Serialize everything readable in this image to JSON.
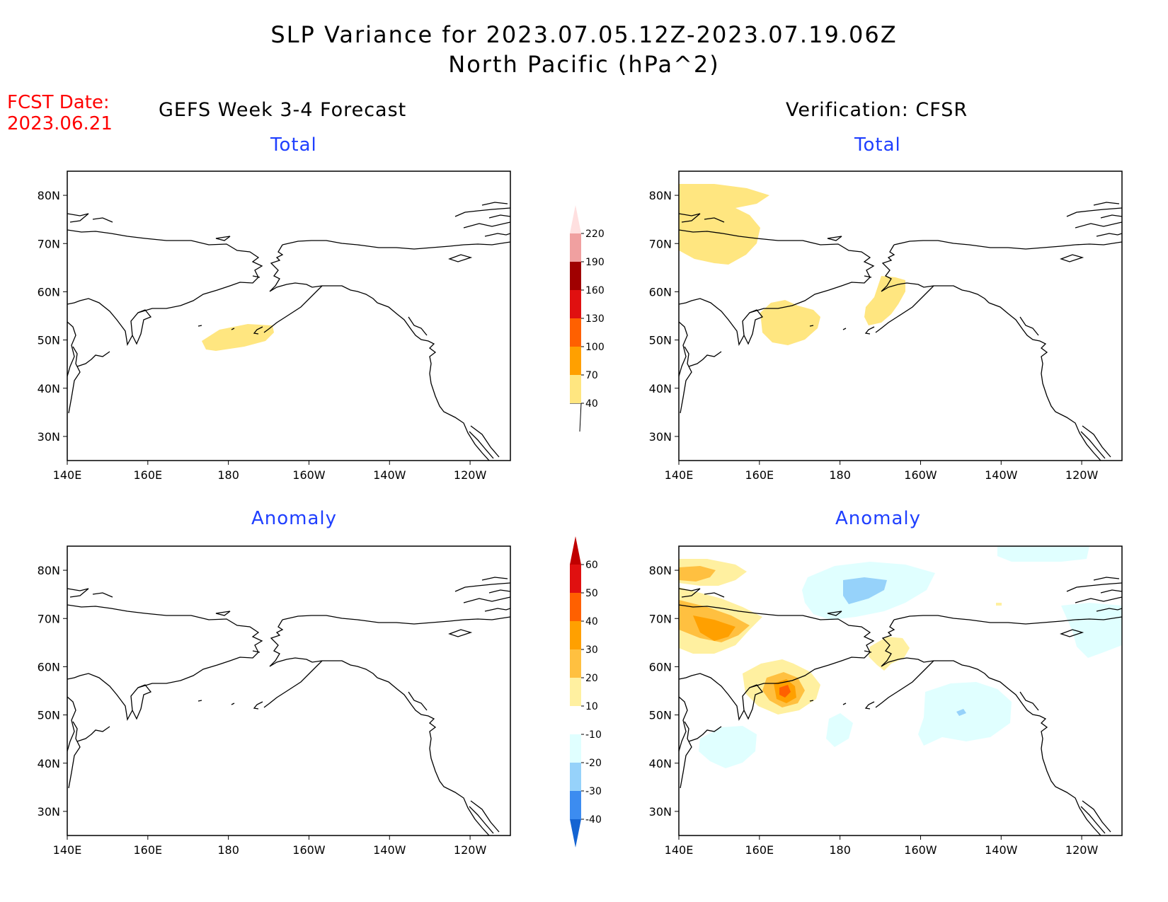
{
  "title": {
    "line1": "SLP Variance for 2023.07.05.12Z-2023.07.19.06Z",
    "line2": "North Pacific (hPa^2)"
  },
  "fcst": {
    "label": "FCST Date:",
    "date": "2023.06.21"
  },
  "columns": {
    "left": "GEFS Week 3-4 Forecast",
    "right": "Verification: CFSR"
  },
  "panels": {
    "forecast_total": {
      "subtitle": "Total"
    },
    "verification_total": {
      "subtitle": "Total"
    },
    "forecast_anomaly": {
      "subtitle": "Anomaly"
    },
    "verification_anomaly": {
      "subtitle": "Anomaly"
    }
  },
  "map": {
    "lat_labels": [
      "80N",
      "70N",
      "60N",
      "50N",
      "40N",
      "30N"
    ],
    "lon_labels": [
      "140E",
      "160E",
      "180",
      "160W",
      "140W",
      "120W"
    ],
    "lat_range": [
      25,
      85
    ],
    "lon_range": [
      140,
      250
    ]
  },
  "colorbars": {
    "total": {
      "levels": [
        "40",
        "70",
        "100",
        "130",
        "160",
        "190",
        "220"
      ],
      "colors": [
        "#ffe680",
        "#ffa000",
        "#ff6000",
        "#e01010",
        "#a00000",
        "#f0a0a0",
        "#ffe0e0"
      ]
    },
    "anomaly": {
      "levels": [
        "60",
        "50",
        "40",
        "30",
        "20",
        "10",
        "-10",
        "-20",
        "-30",
        "-40"
      ],
      "colors_positive": [
        "#c00000",
        "#e01010",
        "#ff6000",
        "#ffa000",
        "#ffc040",
        "#fff0a0"
      ],
      "colors_negative": [
        "#e0ffff",
        "#96d2fa",
        "#3c8cf0",
        "#1464d2"
      ],
      "neutral": "#ffffff"
    }
  }
}
